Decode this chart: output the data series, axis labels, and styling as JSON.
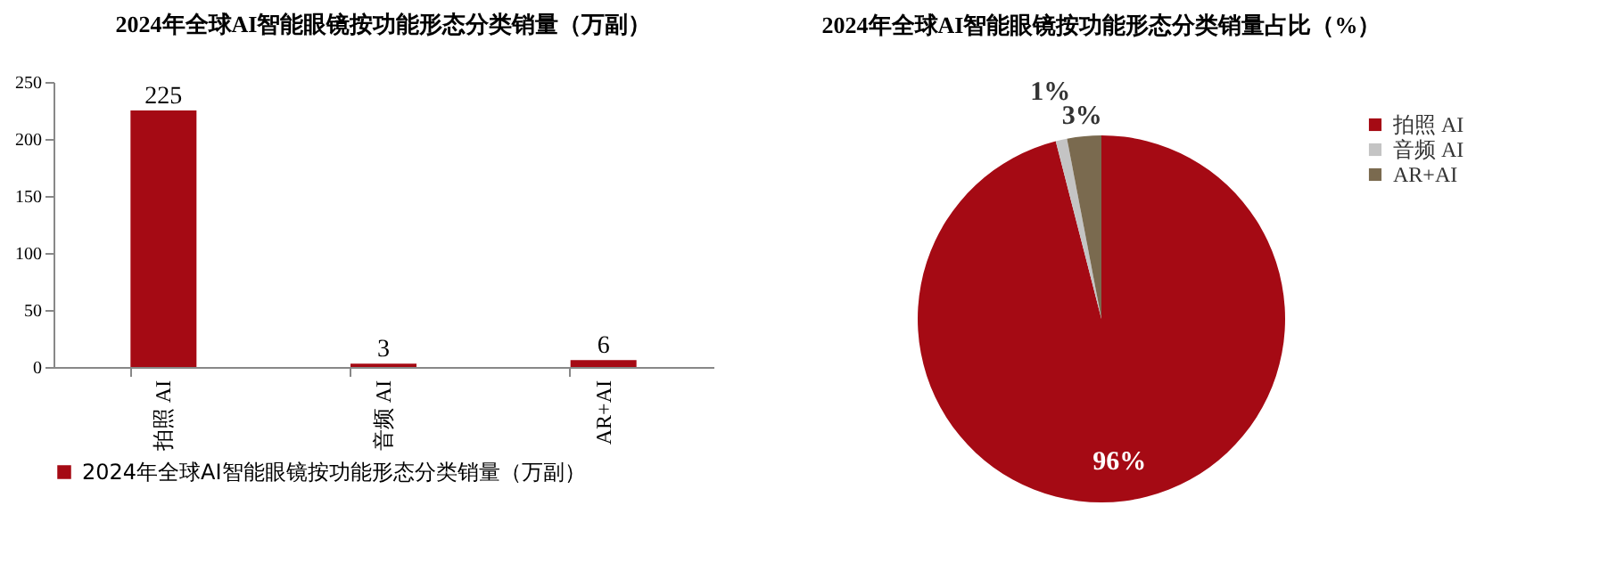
{
  "chart_data": [
    {
      "type": "bar",
      "title": "2024年全球AI智能眼镜按功能形态分类销量（万副）",
      "categories": [
        "拍照 AI",
        "音频 AI",
        "AR+AI"
      ],
      "series": [
        {
          "name": "2024年全球AI智能眼镜按功能形态分类销量（万副）",
          "color": "#a50a14",
          "values": [
            225,
            3,
            6
          ]
        }
      ],
      "ylim": [
        0,
        250
      ],
      "yticks": [
        0,
        50,
        100,
        150,
        200,
        250
      ],
      "data_labels": true,
      "legend": "bottom"
    },
    {
      "type": "pie",
      "title": "2024年全球AI智能眼镜按功能形态分类销量占比（%）",
      "categories": [
        "拍照 AI",
        "音频 AI",
        "AR+AI"
      ],
      "values": [
        96,
        1,
        3
      ],
      "colors": [
        "#a50a14",
        "#c4c4c4",
        "#7a6a4f"
      ],
      "value_labels": [
        "96%",
        "1%",
        "3%"
      ],
      "legend": "right"
    }
  ]
}
